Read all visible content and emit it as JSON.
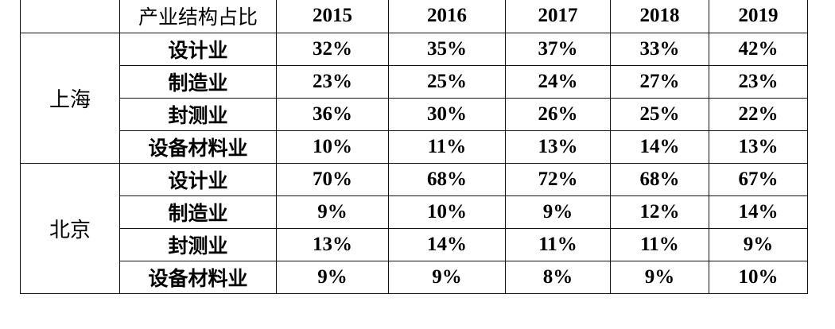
{
  "table": {
    "corner": "",
    "header_label": "产业结构占比",
    "years": [
      "2015",
      "2016",
      "2017",
      "2018",
      "2019"
    ],
    "groups": [
      {
        "city": "上海",
        "rows": [
          {
            "label": "设计业",
            "values": [
              "32%",
              "35%",
              "37%",
              "33%",
              "42%"
            ]
          },
          {
            "label": "制造业",
            "values": [
              "23%",
              "25%",
              "24%",
              "27%",
              "23%"
            ]
          },
          {
            "label": "封测业",
            "values": [
              "36%",
              "30%",
              "26%",
              "25%",
              "22%"
            ]
          },
          {
            "label": "设备材料业",
            "values": [
              "10%",
              "11%",
              "13%",
              "14%",
              "13%"
            ]
          }
        ]
      },
      {
        "city": "北京",
        "rows": [
          {
            "label": "设计业",
            "values": [
              "70%",
              "68%",
              "72%",
              "68%",
              "67%"
            ]
          },
          {
            "label": "制造业",
            "values": [
              "9%",
              "10%",
              "9%",
              "12%",
              "14%"
            ]
          },
          {
            "label": "封测业",
            "values": [
              "13%",
              "14%",
              "11%",
              "11%",
              "9%"
            ]
          },
          {
            "label": "设备材料业",
            "values": [
              "9%",
              "9%",
              "8%",
              "9%",
              "10%"
            ]
          }
        ]
      }
    ]
  }
}
